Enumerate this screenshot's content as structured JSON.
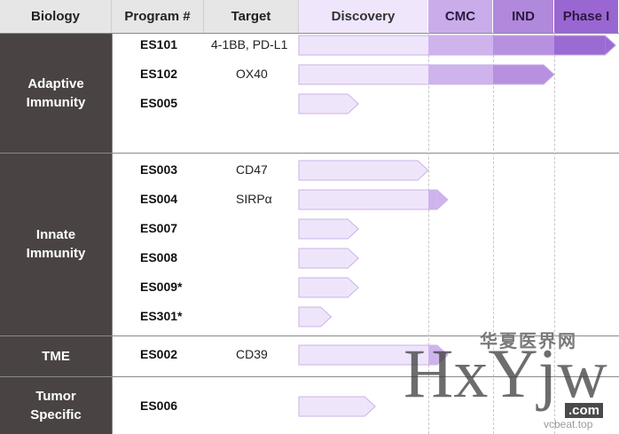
{
  "headers": {
    "biology": "Biology",
    "program": "Program #",
    "target": "Target",
    "stages": [
      "Discovery",
      "CMC",
      "IND",
      "Phase I"
    ]
  },
  "colors": {
    "stage_header": [
      "#efe6fb",
      "#c9ace9",
      "#b088dc",
      "#9a66d2"
    ],
    "group_bg": "#4a4343",
    "bar_fill": "#efe5fb",
    "bar_stroke": "#c9b3e6",
    "bar_cmc": "#cfb3ec",
    "bar_ind": "#b890e0",
    "bar_phase1": "#9b6bd4"
  },
  "groups": [
    {
      "label_lines": [
        "Adaptive",
        "Immunity"
      ]
    },
    {
      "label_lines": [
        "Innate",
        "Immunity"
      ]
    },
    {
      "label_lines": [
        "TME"
      ]
    },
    {
      "label_lines": [
        "Tumor",
        "Specific"
      ]
    }
  ],
  "chart_data": {
    "type": "bar",
    "stages": [
      "Discovery",
      "CMC",
      "IND",
      "Phase I"
    ],
    "stage_scale": "0 = start of Discovery, 1 = end of Discovery, 2 = end of CMC, 3 = end of IND, 4 = end of Phase I",
    "programs": [
      {
        "group": "Adaptive Immunity",
        "program": "ES101",
        "target": "4-1BB, PD-L1",
        "progress": 3.95
      },
      {
        "group": "Adaptive Immunity",
        "program": "ES102",
        "target": "OX40",
        "progress": 3.0
      },
      {
        "group": "Adaptive Immunity",
        "program": "ES005",
        "target": "",
        "progress": 0.46
      },
      {
        "group": "Innate Immunity",
        "program": "ES003",
        "target": "CD47",
        "progress": 1.0
      },
      {
        "group": "Innate Immunity",
        "program": "ES004",
        "target": "SIRPα",
        "progress": 1.3
      },
      {
        "group": "Innate Immunity",
        "program": "ES007",
        "target": "",
        "progress": 0.46
      },
      {
        "group": "Innate Immunity",
        "program": "ES008",
        "target": "",
        "progress": 0.46
      },
      {
        "group": "Innate Immunity",
        "program": "ES009*",
        "target": "",
        "progress": 0.46
      },
      {
        "group": "Innate Immunity",
        "program": "ES301*",
        "target": "",
        "progress": 0.25
      },
      {
        "group": "TME",
        "program": "ES002",
        "target": "CD39",
        "progress": 1.3
      },
      {
        "group": "Tumor Specific",
        "program": "ES006",
        "target": "",
        "progress": 0.59
      }
    ]
  },
  "watermark": {
    "line1": "华夏医界网",
    "big": "HxYjw",
    "sub": "vcbeat.top",
    "com": ".com"
  }
}
